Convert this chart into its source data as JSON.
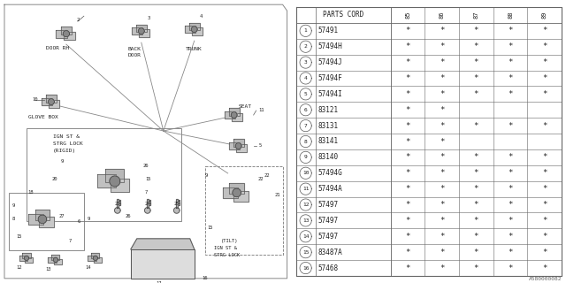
{
  "diagram_code": "A580000082",
  "bg_color": "#ffffff",
  "table_header": "PARTS CORD",
  "col_headers": [
    "85",
    "86",
    "87",
    "88",
    "89"
  ],
  "rows": [
    {
      "num": "1",
      "part": "57491",
      "marks": [
        true,
        true,
        true,
        true,
        true
      ]
    },
    {
      "num": "2",
      "part": "57494H",
      "marks": [
        true,
        true,
        true,
        true,
        true
      ]
    },
    {
      "num": "3",
      "part": "57494J",
      "marks": [
        true,
        true,
        true,
        true,
        true
      ]
    },
    {
      "num": "4",
      "part": "57494F",
      "marks": [
        true,
        true,
        true,
        true,
        true
      ]
    },
    {
      "num": "5",
      "part": "57494I",
      "marks": [
        true,
        true,
        true,
        true,
        true
      ]
    },
    {
      "num": "6",
      "part": "83121",
      "marks": [
        true,
        true,
        false,
        false,
        false
      ]
    },
    {
      "num": "7",
      "part": "83131",
      "marks": [
        true,
        true,
        true,
        true,
        true
      ]
    },
    {
      "num": "8",
      "part": "83141",
      "marks": [
        true,
        true,
        false,
        false,
        false
      ]
    },
    {
      "num": "9",
      "part": "83140",
      "marks": [
        true,
        true,
        true,
        true,
        true
      ]
    },
    {
      "num": "10",
      "part": "57494G",
      "marks": [
        true,
        true,
        true,
        true,
        true
      ]
    },
    {
      "num": "11",
      "part": "57494A",
      "marks": [
        true,
        true,
        true,
        true,
        true
      ]
    },
    {
      "num": "12",
      "part": "57497",
      "marks": [
        true,
        true,
        true,
        true,
        true
      ]
    },
    {
      "num": "13",
      "part": "57497",
      "marks": [
        true,
        true,
        true,
        true,
        true
      ]
    },
    {
      "num": "14",
      "part": "57497",
      "marks": [
        true,
        true,
        true,
        true,
        true
      ]
    },
    {
      "num": "15",
      "part": "83487A",
      "marks": [
        true,
        true,
        true,
        true,
        true
      ]
    },
    {
      "num": "16",
      "part": "57468",
      "marks": [
        true,
        true,
        true,
        true,
        true
      ]
    }
  ],
  "line_color": "#888888",
  "text_color": "#222222"
}
